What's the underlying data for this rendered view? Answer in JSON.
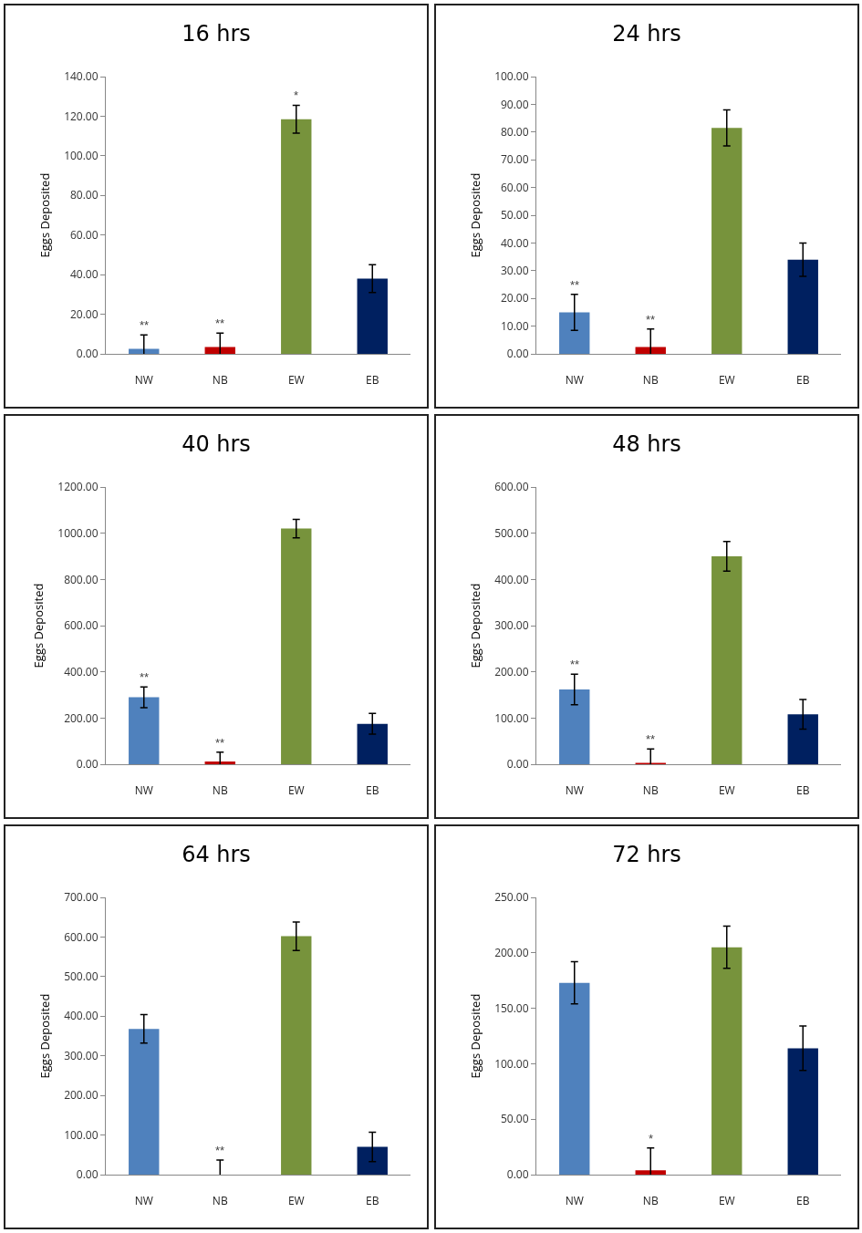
{
  "chart_data": [
    {
      "type": "bar",
      "title": "16 hrs",
      "ylabel": "Eggs Deposited",
      "categories": [
        "NW",
        "NB",
        "EW",
        "EB"
      ],
      "values": [
        2.5,
        3.5,
        118.5,
        38
      ],
      "errors": [
        7,
        7,
        7,
        7
      ],
      "colors": [
        "#4f81bd",
        "#c00000",
        "#77933c",
        "#002060"
      ],
      "ylim": [
        0,
        140
      ],
      "yticks": [
        {
          "value": 0,
          "label": "0.00"
        },
        {
          "value": 20,
          "label": "20.00"
        },
        {
          "value": 40,
          "label": "40.00"
        },
        {
          "value": 60,
          "label": "60.00"
        },
        {
          "value": 80,
          "label": "80.00"
        },
        {
          "value": 100,
          "label": "100.00"
        },
        {
          "value": 120,
          "label": "120.00"
        },
        {
          "value": 140,
          "label": "140.00"
        }
      ],
      "grid": false,
      "annotations": [
        {
          "text": "**",
          "x": "NW",
          "y": 9.5
        },
        {
          "text": "**",
          "x": "NB",
          "y": 10.5
        },
        {
          "text": "*",
          "x": "EW",
          "y": 125.5
        }
      ]
    },
    {
      "type": "bar",
      "title": "24 hrs",
      "ylabel": "Eggs Deposited",
      "categories": [
        "NW",
        "NB",
        "EW",
        "EB"
      ],
      "values": [
        15,
        2.5,
        81.5,
        34
      ],
      "errors": [
        6.5,
        6.5,
        6.5,
        6
      ],
      "colors": [
        "#4f81bd",
        "#c00000",
        "#77933c",
        "#002060"
      ],
      "ylim": [
        0,
        100
      ],
      "yticks": [
        {
          "value": 0,
          "label": "0.00"
        },
        {
          "value": 10,
          "label": "10.00"
        },
        {
          "value": 20,
          "label": "20.00"
        },
        {
          "value": 30,
          "label": "30.00"
        },
        {
          "value": 40,
          "label": "40.00"
        },
        {
          "value": 50,
          "label": "50.00"
        },
        {
          "value": 60,
          "label": "60.00"
        },
        {
          "value": 70,
          "label": "70.00"
        },
        {
          "value": 80,
          "label": "80.00"
        },
        {
          "value": 90,
          "label": "90.00"
        },
        {
          "value": 100,
          "label": "100.00"
        }
      ],
      "grid": false,
      "annotations": [
        {
          "text": "**",
          "x": "NW",
          "y": 21.5
        },
        {
          "text": "**",
          "x": "NB",
          "y": 9
        }
      ]
    },
    {
      "type": "bar",
      "title": "40 hrs",
      "ylabel": "Eggs Deposited",
      "categories": [
        "NW",
        "NB",
        "EW",
        "EB"
      ],
      "values": [
        290,
        12,
        1020,
        175
      ],
      "errors": [
        45,
        40,
        40,
        45
      ],
      "colors": [
        "#4f81bd",
        "#c00000",
        "#77933c",
        "#002060"
      ],
      "ylim": [
        0,
        1200
      ],
      "yticks": [
        {
          "value": 0,
          "label": "0.00"
        },
        {
          "value": 200,
          "label": "200.00"
        },
        {
          "value": 400,
          "label": "400.00"
        },
        {
          "value": 600,
          "label": "600.00"
        },
        {
          "value": 800,
          "label": "800.00"
        },
        {
          "value": 1000,
          "label": "1000.00"
        },
        {
          "value": 1200,
          "label": "1200.00"
        }
      ],
      "grid": false,
      "annotations": [
        {
          "text": "**",
          "x": "NW",
          "y": 335
        },
        {
          "text": "**",
          "x": "NB",
          "y": 52
        }
      ]
    },
    {
      "type": "bar",
      "title": "48 hrs",
      "ylabel": "Eggs Deposited",
      "categories": [
        "NW",
        "NB",
        "EW",
        "EB"
      ],
      "values": [
        162,
        3,
        450,
        108
      ],
      "errors": [
        33,
        30,
        32,
        32
      ],
      "colors": [
        "#4f81bd",
        "#c00000",
        "#77933c",
        "#002060"
      ],
      "ylim": [
        0,
        600
      ],
      "yticks": [
        {
          "value": 0,
          "label": "0.00"
        },
        {
          "value": 100,
          "label": "100.00"
        },
        {
          "value": 200,
          "label": "200.00"
        },
        {
          "value": 300,
          "label": "300.00"
        },
        {
          "value": 400,
          "label": "400.00"
        },
        {
          "value": 500,
          "label": "500.00"
        },
        {
          "value": 600,
          "label": "600.00"
        }
      ],
      "grid": false,
      "annotations": [
        {
          "text": "**",
          "x": "NW",
          "y": 195
        },
        {
          "text": "**",
          "x": "NB",
          "y": 33
        }
      ]
    },
    {
      "type": "bar",
      "title": "64 hrs",
      "ylabel": "Eggs Deposited",
      "categories": [
        "NW",
        "NB",
        "EW",
        "EB"
      ],
      "values": [
        368,
        0,
        602,
        70
      ],
      "errors": [
        36,
        37,
        36,
        37
      ],
      "colors": [
        "#4f81bd",
        "#c00000",
        "#77933c",
        "#002060"
      ],
      "ylim": [
        0,
        700
      ],
      "yticks": [
        {
          "value": 0,
          "label": "0.00"
        },
        {
          "value": 100,
          "label": "100.00"
        },
        {
          "value": 200,
          "label": "200.00"
        },
        {
          "value": 300,
          "label": "300.00"
        },
        {
          "value": 400,
          "label": "400.00"
        },
        {
          "value": 500,
          "label": "500.00"
        },
        {
          "value": 600,
          "label": "600.00"
        },
        {
          "value": 700,
          "label": "700.00"
        }
      ],
      "grid": false,
      "annotations": [
        {
          "text": "**",
          "x": "NB",
          "y": 37
        }
      ]
    },
    {
      "type": "bar",
      "title": "72 hrs",
      "ylabel": "Eggs Deposited",
      "categories": [
        "NW",
        "NB",
        "EW",
        "EB"
      ],
      "values": [
        173,
        4,
        205,
        114
      ],
      "errors": [
        19,
        20,
        19,
        20
      ],
      "colors": [
        "#4f81bd",
        "#c00000",
        "#77933c",
        "#002060"
      ],
      "ylim": [
        0,
        250
      ],
      "yticks": [
        {
          "value": 0,
          "label": "0.00"
        },
        {
          "value": 50,
          "label": "50.00"
        },
        {
          "value": 100,
          "label": "100.00"
        },
        {
          "value": 150,
          "label": "150.00"
        },
        {
          "value": 200,
          "label": "200.00"
        },
        {
          "value": 250,
          "label": "250.00"
        }
      ],
      "grid": false,
      "annotations": [
        {
          "text": "*",
          "x": "NB",
          "y": 24
        }
      ]
    }
  ]
}
